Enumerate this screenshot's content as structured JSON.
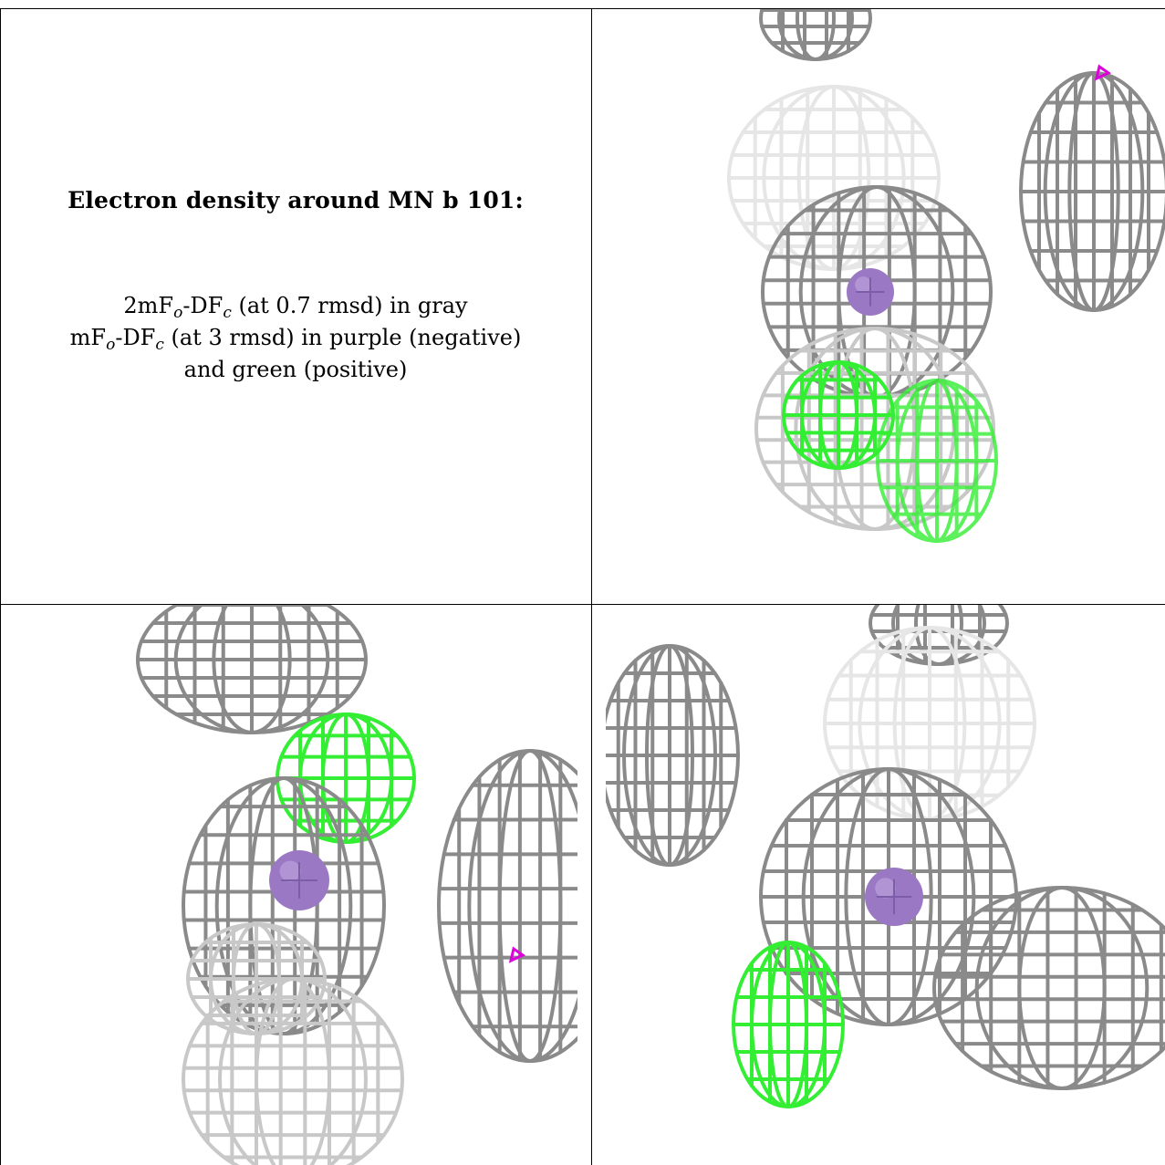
{
  "caption": {
    "title": "Electron density around MN b 101:",
    "line1": {
      "pre": "2mF",
      "sub1": "o",
      "mid": "-DF",
      "sub2": "c",
      "post": " (at 0.7 rmsd) in gray"
    },
    "line2": {
      "pre": "mF",
      "sub1": "o",
      "mid": "-DF",
      "sub2": "c",
      "post": " (at 3 rmsd) in purple (negative)"
    },
    "line3": "and green (positive)"
  },
  "colors": {
    "mesh_gray": "#8a8a8a",
    "mesh_gray_light": "#c8c8c8",
    "mesh_faint": "#e6e6e6",
    "mesh_green": "#33ee33",
    "negative_purple": "#dd00dd",
    "atom_mn": "#9a78c4"
  },
  "panels": [
    {
      "name": "view-top-right",
      "atom": "MN"
    },
    {
      "name": "view-bottom-left",
      "atom": "MN"
    },
    {
      "name": "view-bottom-right",
      "atom": "MN"
    }
  ]
}
